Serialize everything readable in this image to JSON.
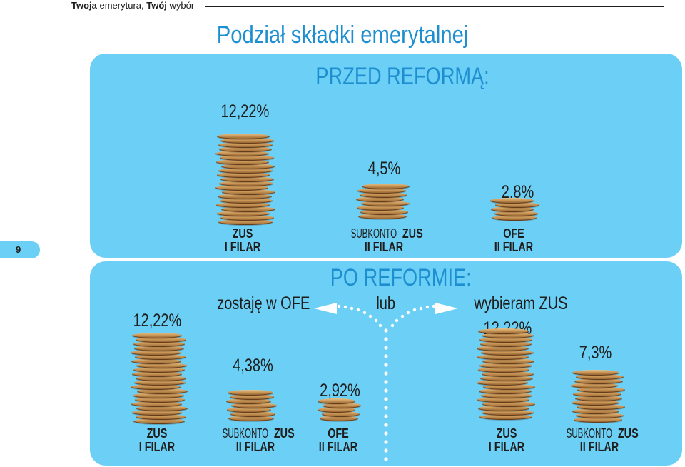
{
  "header": {
    "bold1": "Twoja",
    "text1": " emerytura, ",
    "bold2": "Twój",
    "text2": " wybór"
  },
  "page_number": "9",
  "title": "Podział składki emerytalnej",
  "before": {
    "heading": "PRZED REFORMĄ:",
    "items": [
      {
        "percent": "12,22%",
        "value": 12.22,
        "label_top": "ZUS",
        "label_bottom": "I FILAR"
      },
      {
        "percent": "4,5%",
        "value": 4.5,
        "label_prefix": "SUBKONTO ",
        "label_top": "ZUS",
        "label_bottom": "II FILAR"
      },
      {
        "percent": "2,8%",
        "value": 2.8,
        "label_top": "OFE",
        "label_bottom": "II FILAR"
      }
    ]
  },
  "after": {
    "heading": "PO REFORMIE:",
    "choice_left": "zostaję w OFE",
    "choice_or": "lub",
    "choice_right": "wybieram ZUS",
    "left_items": [
      {
        "percent": "12,22%",
        "value": 12.22,
        "label_top": "ZUS",
        "label_bottom": "I FILAR"
      },
      {
        "percent": "4,38%",
        "value": 4.38,
        "label_prefix": "SUBKONTO ",
        "label_top": "ZUS",
        "label_bottom": "II FILAR"
      },
      {
        "percent": "2,92%",
        "value": 2.92,
        "label_top": "OFE",
        "label_bottom": "II FILAR"
      }
    ],
    "right_items": [
      {
        "percent": "12,22%",
        "value": 12.22,
        "label_top": "ZUS",
        "label_bottom": "I FILAR"
      },
      {
        "percent": "7,3%",
        "value": 7.3,
        "label_prefix": "SUBKONTO ",
        "label_top": "ZUS",
        "label_bottom": "II FILAR"
      }
    ]
  },
  "colors": {
    "panel": "#6ccff6",
    "heading": "#1d8fd1",
    "text": "#1d1d1b",
    "dots": "#ffffff"
  }
}
